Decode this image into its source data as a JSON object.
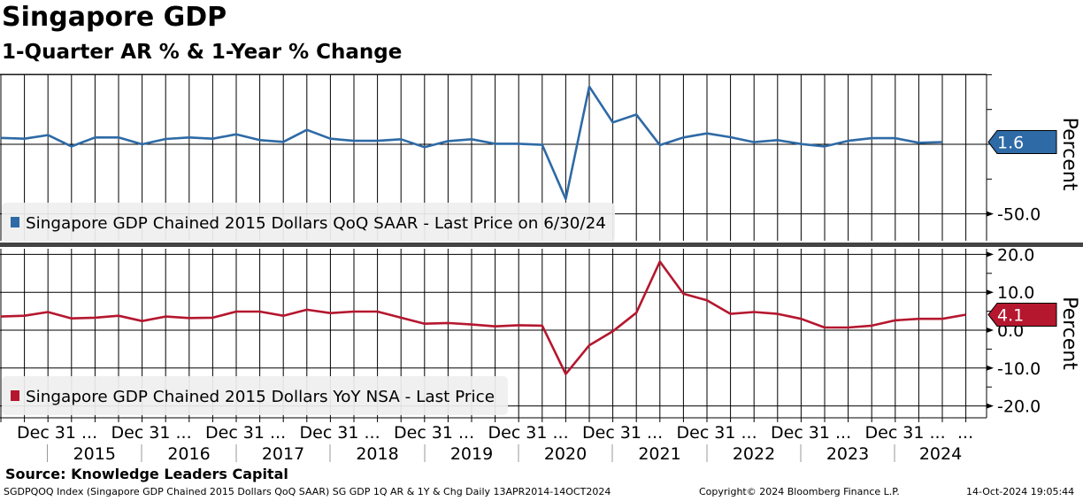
{
  "header": {
    "title": "Singapore GDP",
    "subtitle": "1-Quarter AR % & 1-Year % Change"
  },
  "chart_data": [
    {
      "type": "line",
      "panel": "top",
      "series": [
        {
          "name": "Singapore GDP Chained 2015 Dollars QoQ SAAR - Last Price on 6/30/24",
          "color": "#2e6aa6",
          "x": [
            "2014-06-30",
            "2014-09-30",
            "2014-12-31",
            "2015-03-31",
            "2015-06-30",
            "2015-09-30",
            "2015-12-31",
            "2016-03-31",
            "2016-06-30",
            "2016-09-30",
            "2016-12-31",
            "2017-03-31",
            "2017-06-30",
            "2017-09-30",
            "2017-12-31",
            "2018-03-31",
            "2018-06-30",
            "2018-09-30",
            "2018-12-31",
            "2019-03-31",
            "2019-06-30",
            "2019-09-30",
            "2019-12-31",
            "2020-03-31",
            "2020-06-30",
            "2020-09-30",
            "2020-12-31",
            "2021-03-31",
            "2021-06-30",
            "2021-09-30",
            "2021-12-31",
            "2022-03-31",
            "2022-06-30",
            "2022-09-30",
            "2022-12-31",
            "2023-03-31",
            "2023-06-30",
            "2023-09-30",
            "2023-12-31",
            "2024-03-31",
            "2024-06-30"
          ],
          "values": [
            4.6,
            4.0,
            6.6,
            -1.5,
            4.9,
            4.9,
            0.0,
            3.8,
            4.9,
            4.0,
            7.2,
            3.0,
            1.7,
            10.4,
            4.0,
            2.5,
            2.5,
            3.6,
            -2.1,
            2.3,
            3.6,
            0.4,
            0.4,
            -0.4,
            -39.4,
            41.5,
            15.7,
            21.4,
            -0.6,
            4.9,
            7.8,
            5.1,
            1.5,
            3.0,
            0.2,
            -1.5,
            2.5,
            4.4,
            4.4,
            1.1,
            1.6
          ]
        }
      ],
      "last_value_label": "1.6",
      "ylabel": "Percent",
      "yticks": [
        -50.0
      ],
      "ytick_labels": [
        "-50.0"
      ],
      "ylim": [
        -50,
        50
      ]
    },
    {
      "type": "line",
      "panel": "bottom",
      "series": [
        {
          "name": "Singapore GDP Chained 2015 Dollars YoY NSA - Last Price",
          "color": "#b5172f",
          "x": [
            "2014-06-30",
            "2014-09-30",
            "2014-12-31",
            "2015-03-31",
            "2015-06-30",
            "2015-09-30",
            "2015-12-31",
            "2016-03-31",
            "2016-06-30",
            "2016-09-30",
            "2016-12-31",
            "2017-03-31",
            "2017-06-30",
            "2017-09-30",
            "2017-12-31",
            "2018-03-31",
            "2018-06-30",
            "2018-09-30",
            "2018-12-31",
            "2019-03-31",
            "2019-06-30",
            "2019-09-30",
            "2019-12-31",
            "2020-03-31",
            "2020-06-30",
            "2020-09-30",
            "2020-12-31",
            "2021-03-31",
            "2021-06-30",
            "2021-09-30",
            "2021-12-31",
            "2022-03-31",
            "2022-06-30",
            "2022-09-30",
            "2022-12-31",
            "2023-03-31",
            "2023-06-30",
            "2023-09-30",
            "2023-12-31",
            "2024-03-31",
            "2024-06-30",
            "2024-09-30"
          ],
          "values": [
            3.6,
            3.8,
            4.8,
            3.1,
            3.3,
            3.8,
            2.4,
            3.6,
            3.2,
            3.3,
            4.9,
            4.9,
            3.8,
            5.4,
            4.5,
            4.9,
            4.9,
            3.3,
            1.7,
            1.9,
            1.5,
            1.0,
            1.3,
            1.2,
            -11.6,
            -4.0,
            -0.3,
            4.6,
            18.1,
            9.6,
            7.9,
            4.3,
            4.8,
            4.3,
            3.0,
            0.7,
            0.7,
            1.2,
            2.6,
            3.0,
            3.0,
            4.1
          ]
        }
      ],
      "last_value_label": "4.1",
      "ylabel": "Percent",
      "yticks": [
        20.0,
        10.0,
        0.0,
        -10.0,
        -20.0
      ],
      "ytick_labels": [
        "20.0",
        "10.0",
        "0.0",
        "-10.0",
        "-20.0"
      ],
      "ylim": [
        -22,
        22
      ]
    }
  ],
  "xaxis": {
    "date_labels": [
      "Dec 31 ...",
      "Dec 31 ...",
      "Dec 31 ...",
      "Dec 31 ...",
      "Dec 31 ...",
      "Dec 31 ...",
      "Dec 31 ...",
      "Dec 31 ...",
      "Dec 31 ...",
      "Dec 31 ...",
      "..."
    ],
    "year_labels": [
      "2015",
      "2016",
      "2017",
      "2018",
      "2019",
      "2020",
      "2021",
      "2022",
      "2023",
      "2024"
    ]
  },
  "footer": {
    "source": "Source: Knowledge Leaders Capital",
    "ticker_line": "SGDPQOQ Index (Singapore GDP Chained 2015 Dollars QoQ SAAR) SG GDP 1Q AR & 1Y & Chg  Daily 13APR2014-14OCT2024",
    "copyright": "Copyright© 2024 Bloomberg Finance L.P.",
    "timestamp": "14-Oct-2024 19:05:44"
  }
}
